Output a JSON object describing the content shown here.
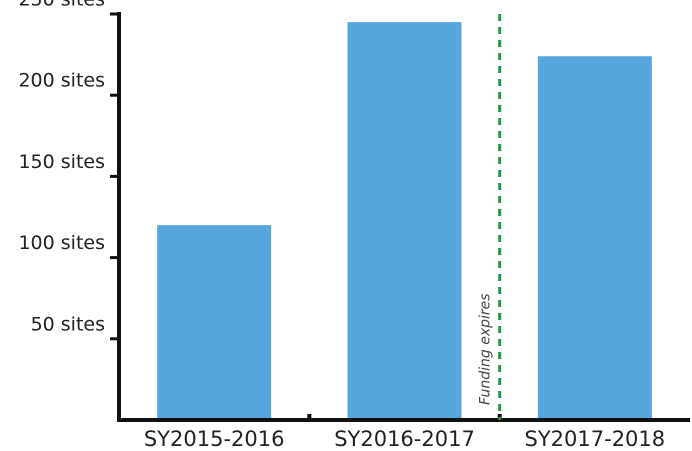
{
  "chart_data": {
    "type": "bar",
    "categories": [
      "SY2015-2016",
      "SY2016-2017",
      "SY2017-2018"
    ],
    "values": [
      120,
      245,
      224
    ],
    "color": "#56a5dc",
    "ylim": [
      0,
      250
    ],
    "yticks": [
      {
        "value": 50,
        "label": "50 sites"
      },
      {
        "value": 100,
        "label": "100 sites"
      },
      {
        "value": 150,
        "label": "150 sites"
      },
      {
        "value": 200,
        "label": "200 sites"
      },
      {
        "value": 250,
        "label": "250 sites"
      }
    ],
    "grid": false,
    "annotation": "Funding expires",
    "annotation_color": "#1f9a40"
  }
}
